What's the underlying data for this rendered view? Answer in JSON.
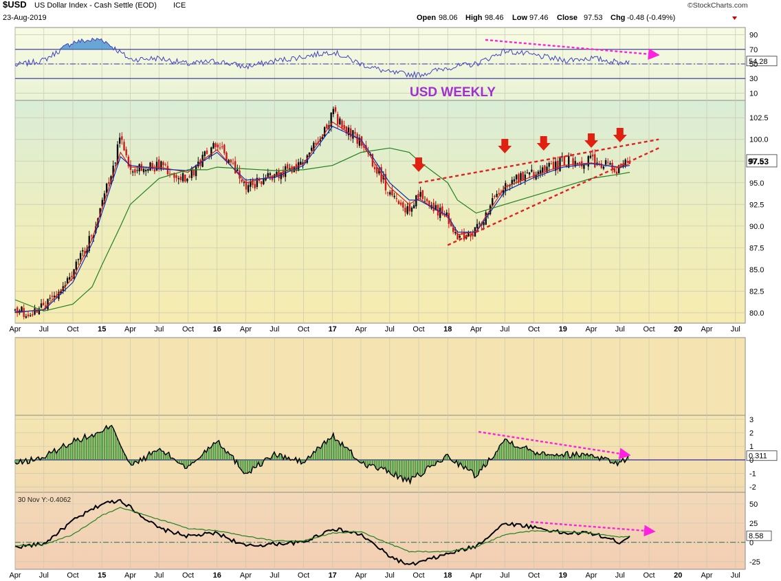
{
  "header": {
    "symbol": "$USD",
    "name": "US Dollar Index - Cash Settle (EOD)",
    "exchange": "ICE",
    "date": "23-Aug-2019",
    "brand": "©StockCharts.com",
    "open_label": "Open",
    "open": "98.06",
    "high_label": "High",
    "high": "98.46",
    "low_label": "Low",
    "low": "97.46",
    "close_label": "Close",
    "close": "97.53",
    "chg_label": "Chg",
    "chg": "-0.48 (-0.49%)",
    "chg_color": "#cc0000"
  },
  "annotation": {
    "text": "USD WEEKLY",
    "color": "#a030d0"
  },
  "time_axis": {
    "labels": [
      "Apr",
      "Jul",
      "Oct",
      "15",
      "Apr",
      "Jul",
      "Oct",
      "16",
      "Apr",
      "Jul",
      "Oct",
      "17",
      "Apr",
      "Jul",
      "Oct",
      "18",
      "Apr",
      "Jul",
      "Oct",
      "19",
      "Apr",
      "Jul",
      "Oct",
      "20",
      "Apr",
      "Jul"
    ],
    "bold": [
      "15",
      "16",
      "17",
      "18",
      "19",
      "20"
    ]
  },
  "chart_data": [
    {
      "type": "line",
      "panel": "oscillator-top",
      "ylim": [
        0,
        100
      ],
      "ticks": [
        "90",
        "70",
        "50",
        "30",
        "10"
      ],
      "reference_lines": [
        70,
        50,
        30
      ],
      "current_value": "54.28",
      "x": [
        "2014-04",
        "2014-07",
        "2014-10",
        "2015-01",
        "2015-04",
        "2015-07",
        "2015-10",
        "2016-01",
        "2016-04",
        "2016-07",
        "2016-10",
        "2017-01",
        "2017-04",
        "2017-07",
        "2017-10",
        "2018-01",
        "2018-04",
        "2018-07",
        "2018-10",
        "2019-01",
        "2019-04",
        "2019-07",
        "2019-08"
      ],
      "values": [
        48,
        55,
        80,
        84,
        56,
        58,
        50,
        54,
        46,
        54,
        60,
        67,
        50,
        38,
        35,
        45,
        50,
        68,
        62,
        55,
        58,
        52,
        54
      ],
      "line_color": "#4040c0",
      "fill_color": "#3a8ad0"
    },
    {
      "type": "line",
      "panel": "price",
      "ylim": [
        78.8,
        104.5
      ],
      "ticks": [
        "102.5",
        "100.0",
        "97.5",
        "95.0",
        "92.5",
        "90.0",
        "87.5",
        "85.0",
        "82.5",
        "80.0"
      ],
      "current_value": "97.53",
      "x": [
        "2014-04",
        "2014-07",
        "2014-10",
        "2014-12",
        "2015-01",
        "2015-03",
        "2015-04",
        "2015-07",
        "2015-10",
        "2015-12",
        "2016-01",
        "2016-04",
        "2016-07",
        "2016-10",
        "2017-01",
        "2017-04",
        "2017-07",
        "2017-09",
        "2017-10",
        "2018-01",
        "2018-02",
        "2018-04",
        "2018-07",
        "2018-10",
        "2019-01",
        "2019-04",
        "2019-07",
        "2019-08"
      ],
      "series": [
        {
          "values": [
            80.0,
            80.5,
            84.5,
            89.0,
            92.5,
            100.0,
            96.5,
            97.0,
            95.5,
            98.5,
            99.5,
            94.5,
            96.0,
            97.0,
            103.0,
            99.5,
            94.0,
            91.5,
            93.5,
            91.0,
            88.5,
            89.5,
            95.0,
            96.0,
            97.5,
            97.5,
            96.5,
            97.6
          ],
          "color": "#000000"
        },
        {
          "values": [
            80.0,
            80.4,
            84.0,
            88.5,
            92.0,
            98.5,
            96.8,
            96.8,
            96.2,
            98.0,
            98.8,
            95.0,
            95.8,
            97.2,
            102.0,
            99.8,
            94.5,
            92.5,
            93.2,
            91.0,
            89.0,
            89.4,
            94.5,
            95.8,
            97.0,
            97.3,
            96.7,
            97.2
          ],
          "color": "#d02020"
        },
        {
          "values": [
            80.1,
            80.3,
            83.5,
            88.0,
            91.5,
            98.0,
            97.0,
            96.6,
            96.4,
            97.8,
            98.5,
            95.3,
            95.6,
            97.0,
            101.5,
            100.0,
            95.0,
            93.0,
            93.0,
            91.2,
            89.3,
            89.3,
            94.0,
            95.6,
            96.8,
            97.2,
            96.8,
            97.0
          ],
          "color": "#1030b0"
        },
        {
          "values": [
            81.5,
            80.2,
            81.0,
            83.0,
            85.5,
            90.0,
            92.5,
            95.5,
            96.5,
            96.5,
            96.8,
            96.6,
            96.4,
            96.5,
            97.0,
            98.5,
            99.0,
            98.5,
            97.5,
            95.0,
            93.0,
            91.5,
            92.5,
            93.5,
            94.5,
            95.5,
            96.0,
            96.2
          ],
          "color": "#208020"
        }
      ],
      "trendlines": [
        {
          "x": [
            "2017-10",
            "2019-11"
          ],
          "values": [
            95.0,
            100.0
          ],
          "color": "#e02020",
          "dash": true
        },
        {
          "x": [
            "2018-01",
            "2019-11"
          ],
          "values": [
            87.8,
            99.0
          ],
          "color": "#e02020",
          "dash": true
        }
      ],
      "markers": [
        {
          "x": "2017-10",
          "type": "down-arrow",
          "color": "#e02010"
        },
        {
          "x": "2018-07",
          "type": "down-arrow",
          "color": "#e02010"
        },
        {
          "x": "2018-11",
          "type": "down-arrow",
          "color": "#e02010"
        },
        {
          "x": "2019-04",
          "type": "down-arrow",
          "color": "#e02010"
        },
        {
          "x": "2019-07",
          "type": "down-arrow",
          "color": "#e02010"
        }
      ]
    },
    {
      "type": "area",
      "panel": "histogram",
      "ylim": [
        -2.4,
        3.3
      ],
      "ticks": [
        "3",
        "2",
        "1",
        "0",
        "-1",
        "-2"
      ],
      "current_value": "0.311",
      "x": [
        "2014-04",
        "2014-07",
        "2014-10",
        "2015-01",
        "2015-02",
        "2015-04",
        "2015-07",
        "2015-10",
        "2016-01",
        "2016-04",
        "2016-07",
        "2016-10",
        "2017-01",
        "2017-04",
        "2017-07",
        "2017-09",
        "2018-01",
        "2018-04",
        "2018-07",
        "2018-10",
        "2019-01",
        "2019-04",
        "2019-07",
        "2019-08"
      ],
      "values": [
        -0.3,
        0.2,
        1.4,
        2.0,
        2.7,
        -0.5,
        0.8,
        -0.6,
        1.5,
        -1.0,
        0.4,
        -0.2,
        1.8,
        -0.2,
        -0.9,
        -1.6,
        0.3,
        -1.2,
        1.5,
        0.6,
        0.4,
        0.4,
        -0.3,
        0.311
      ],
      "line_color": "#000000",
      "fill_color": "#2e8b2e"
    },
    {
      "type": "line",
      "panel": "momentum",
      "ylim": [
        -35,
        65
      ],
      "ticks": [
        "50",
        "25",
        "0",
        "-25"
      ],
      "current_value": "8.58",
      "tooltip": "30 Nov Y:-0.4062",
      "x": [
        "2014-04",
        "2014-07",
        "2014-10",
        "2015-01",
        "2015-03",
        "2015-07",
        "2015-10",
        "2016-01",
        "2016-04",
        "2016-07",
        "2016-10",
        "2017-01",
        "2017-04",
        "2017-07",
        "2017-09",
        "2018-01",
        "2018-04",
        "2018-07",
        "2018-10",
        "2019-01",
        "2019-04",
        "2019-07",
        "2019-08"
      ],
      "series": [
        {
          "values": [
            -6,
            -2,
            28,
            50,
            55,
            18,
            8,
            12,
            -5,
            -2,
            0,
            18,
            10,
            -18,
            -30,
            -15,
            -5,
            25,
            20,
            12,
            12,
            0,
            8.58
          ],
          "color": "#000000"
        },
        {
          "values": [
            -4,
            -3,
            10,
            35,
            45,
            30,
            18,
            15,
            8,
            2,
            2,
            12,
            14,
            -2,
            -12,
            -12,
            -6,
            10,
            15,
            14,
            12,
            7,
            8
          ],
          "color": "#208020"
        }
      ]
    }
  ],
  "trend_arrows_color": "#ff20e0"
}
